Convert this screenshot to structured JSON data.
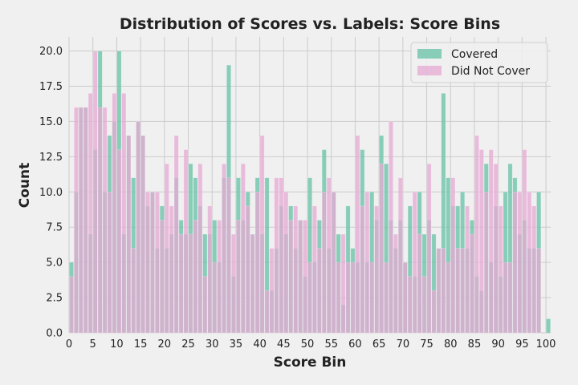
{
  "chart_data": {
    "type": "bar",
    "title": "Distribution of Scores vs. Labels: Score Bins",
    "xlabel": "Score Bin",
    "ylabel": "Count",
    "xlim": [
      0,
      101
    ],
    "ylim": [
      0,
      21
    ],
    "xticks": [
      0,
      5,
      10,
      15,
      20,
      25,
      30,
      35,
      40,
      45,
      50,
      55,
      60,
      65,
      70,
      75,
      80,
      85,
      90,
      95,
      100
    ],
    "yticks": [
      0,
      2.5,
      5,
      7.5,
      10,
      12.5,
      15,
      17.5,
      20
    ],
    "ytick_labels": [
      "0.0",
      "2.5",
      "5.0",
      "7.5",
      "10.0",
      "12.5",
      "15.0",
      "17.5",
      "20.0"
    ],
    "grid": true,
    "legend_position": "top-right",
    "overlay": true,
    "x": [
      0,
      1,
      2,
      3,
      4,
      5,
      6,
      7,
      8,
      9,
      10,
      11,
      12,
      13,
      14,
      15,
      16,
      17,
      18,
      19,
      20,
      21,
      22,
      23,
      24,
      25,
      26,
      27,
      28,
      29,
      30,
      31,
      32,
      33,
      34,
      35,
      36,
      37,
      38,
      39,
      40,
      41,
      42,
      43,
      44,
      45,
      46,
      47,
      48,
      49,
      50,
      51,
      52,
      53,
      54,
      55,
      56,
      57,
      58,
      59,
      60,
      61,
      62,
      63,
      64,
      65,
      66,
      67,
      68,
      69,
      70,
      71,
      72,
      73,
      74,
      75,
      76,
      77,
      78,
      79,
      80,
      81,
      82,
      83,
      84,
      85,
      86,
      87,
      88,
      89,
      90,
      91,
      92,
      93,
      94,
      95,
      96,
      97,
      98,
      99,
      100
    ],
    "series": [
      {
        "name": "Covered",
        "color": "#66c2a5",
        "values": [
          5,
          10,
          16,
          16,
          7,
          13,
          20,
          10,
          14,
          15,
          20,
          7,
          14,
          11,
          15,
          14,
          9,
          10,
          6,
          9,
          6,
          7,
          11,
          8,
          7,
          12,
          11,
          9,
          7,
          7,
          8,
          5,
          11,
          19,
          4,
          11,
          8,
          10,
          7,
          11,
          7,
          11,
          3,
          6,
          9,
          7,
          9,
          6,
          8,
          4,
          11,
          5,
          8,
          13,
          6,
          10,
          7,
          2,
          9,
          6,
          5,
          13,
          5,
          10,
          8,
          14,
          12,
          8,
          6,
          8,
          5,
          9,
          4,
          10,
          7,
          8,
          7,
          6,
          17,
          11,
          9,
          9,
          10,
          6,
          8,
          4,
          3,
          12,
          5,
          9,
          4,
          10,
          12,
          11,
          7,
          8,
          6,
          6,
          10,
          0,
          1
        ]
      },
      {
        "name": "Did Not Cover",
        "color": "#e7a9d4",
        "values": [
          4,
          16,
          16,
          16,
          17,
          20,
          16,
          16,
          10,
          17,
          13,
          17,
          14,
          6,
          15,
          14,
          10,
          10,
          10,
          8,
          12,
          9,
          14,
          7,
          13,
          7,
          8,
          12,
          4,
          9,
          5,
          8,
          12,
          11,
          7,
          8,
          12,
          9,
          7,
          10,
          14,
          3,
          6,
          11,
          11,
          10,
          8,
          9,
          8,
          8,
          5,
          9,
          6,
          10,
          11,
          10,
          5,
          7,
          5,
          5,
          14,
          9,
          10,
          5,
          9,
          12,
          5,
          15,
          7,
          11,
          5,
          4,
          10,
          7,
          4,
          12,
          3,
          6,
          6,
          5,
          11,
          6,
          6,
          9,
          7,
          14,
          13,
          10,
          13,
          12,
          9,
          5,
          5,
          10,
          10,
          13,
          10,
          9,
          6,
          0,
          0
        ]
      }
    ]
  }
}
